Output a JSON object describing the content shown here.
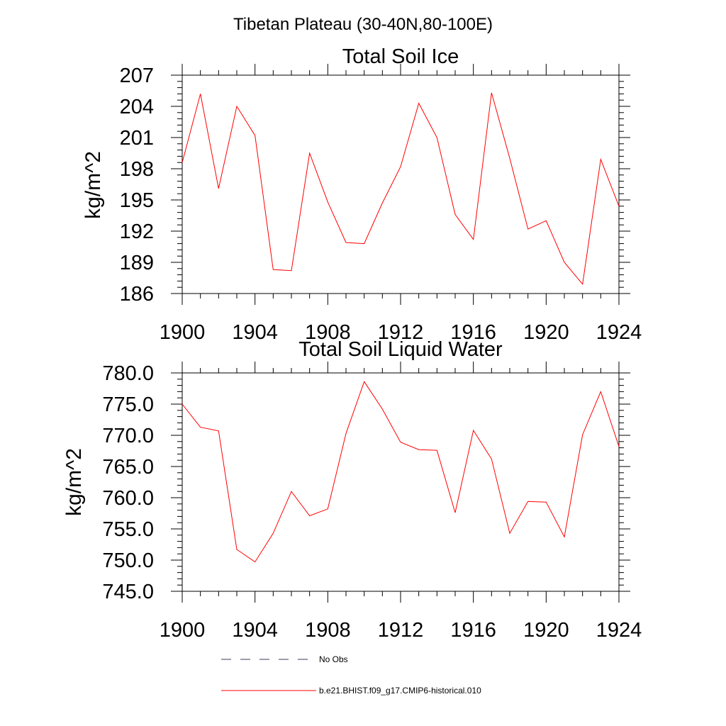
{
  "figure_title": "Tibetan Plateau (30-40N,80-100E)",
  "line_color": "#ff0000",
  "chart_data": [
    {
      "type": "line",
      "title": "Total Soil Ice",
      "xlabel": "",
      "ylabel": "kg/m^2",
      "xlim": [
        1900,
        1924
      ],
      "ylim": [
        186,
        207
      ],
      "xticks": [
        1900,
        1904,
        1908,
        1912,
        1916,
        1920,
        1924
      ],
      "xtick_labels": [
        "1900",
        "1904",
        "1908",
        "1912",
        "1916",
        "1920",
        "1924"
      ],
      "yticks": [
        186,
        189,
        192,
        195,
        198,
        201,
        204,
        207
      ],
      "ytick_labels": [
        "186",
        "189",
        "192",
        "195",
        "198",
        "201",
        "204",
        "207"
      ],
      "grid": false,
      "x": [
        1900,
        1901,
        1902,
        1903,
        1904,
        1905,
        1906,
        1907,
        1908,
        1909,
        1910,
        1911,
        1912,
        1913,
        1914,
        1915,
        1916,
        1917,
        1918,
        1919,
        1920,
        1921,
        1922,
        1923,
        1924
      ],
      "series": [
        {
          "name": "b.e21.BHIST.f09_g17.CMIP6-historical.010",
          "values": [
            198.6,
            205.2,
            196.1,
            204.0,
            201.2,
            188.3,
            188.2,
            199.5,
            194.8,
            190.9,
            190.8,
            194.7,
            198.2,
            204.3,
            201.0,
            193.6,
            191.2,
            205.3,
            199.0,
            192.2,
            193.0,
            189.0,
            186.9,
            198.9,
            194.4
          ]
        }
      ]
    },
    {
      "type": "line",
      "title": "Total Soil Liquid Water",
      "xlabel": "",
      "ylabel": "kg/m^2",
      "xlim": [
        1900,
        1924
      ],
      "ylim": [
        745,
        780
      ],
      "xticks": [
        1900,
        1904,
        1908,
        1912,
        1916,
        1920,
        1924
      ],
      "xtick_labels": [
        "1900",
        "1904",
        "1908",
        "1912",
        "1916",
        "1920",
        "1924"
      ],
      "yticks": [
        745,
        750,
        755,
        760,
        765,
        770,
        775,
        780
      ],
      "ytick_labels": [
        "745.0",
        "750.0",
        "755.0",
        "760.0",
        "765.0",
        "770.0",
        "775.0",
        "780.0"
      ],
      "grid": false,
      "x": [
        1900,
        1901,
        1902,
        1903,
        1904,
        1905,
        1906,
        1907,
        1908,
        1909,
        1910,
        1911,
        1912,
        1913,
        1914,
        1915,
        1916,
        1917,
        1918,
        1919,
        1920,
        1921,
        1922,
        1923,
        1924
      ],
      "series": [
        {
          "name": "b.e21.BHIST.f09_g17.CMIP6-historical.010",
          "values": [
            775.0,
            771.3,
            770.7,
            751.7,
            749.7,
            754.3,
            761.0,
            757.1,
            758.2,
            770.3,
            778.6,
            774.2,
            768.9,
            767.7,
            767.6,
            757.6,
            770.8,
            766.2,
            754.3,
            759.4,
            759.3,
            753.7,
            770.1,
            777.0,
            768.2
          ]
        }
      ]
    }
  ],
  "legend": {
    "position": "bottom-center",
    "entries": [
      {
        "label": "No Obs",
        "style": "dashed",
        "color": "#3a3a5c"
      },
      {
        "label": "b.e21.BHIST.f09_g17.CMIP6-historical.010",
        "style": "solid",
        "color": "#ff0000"
      }
    ]
  }
}
